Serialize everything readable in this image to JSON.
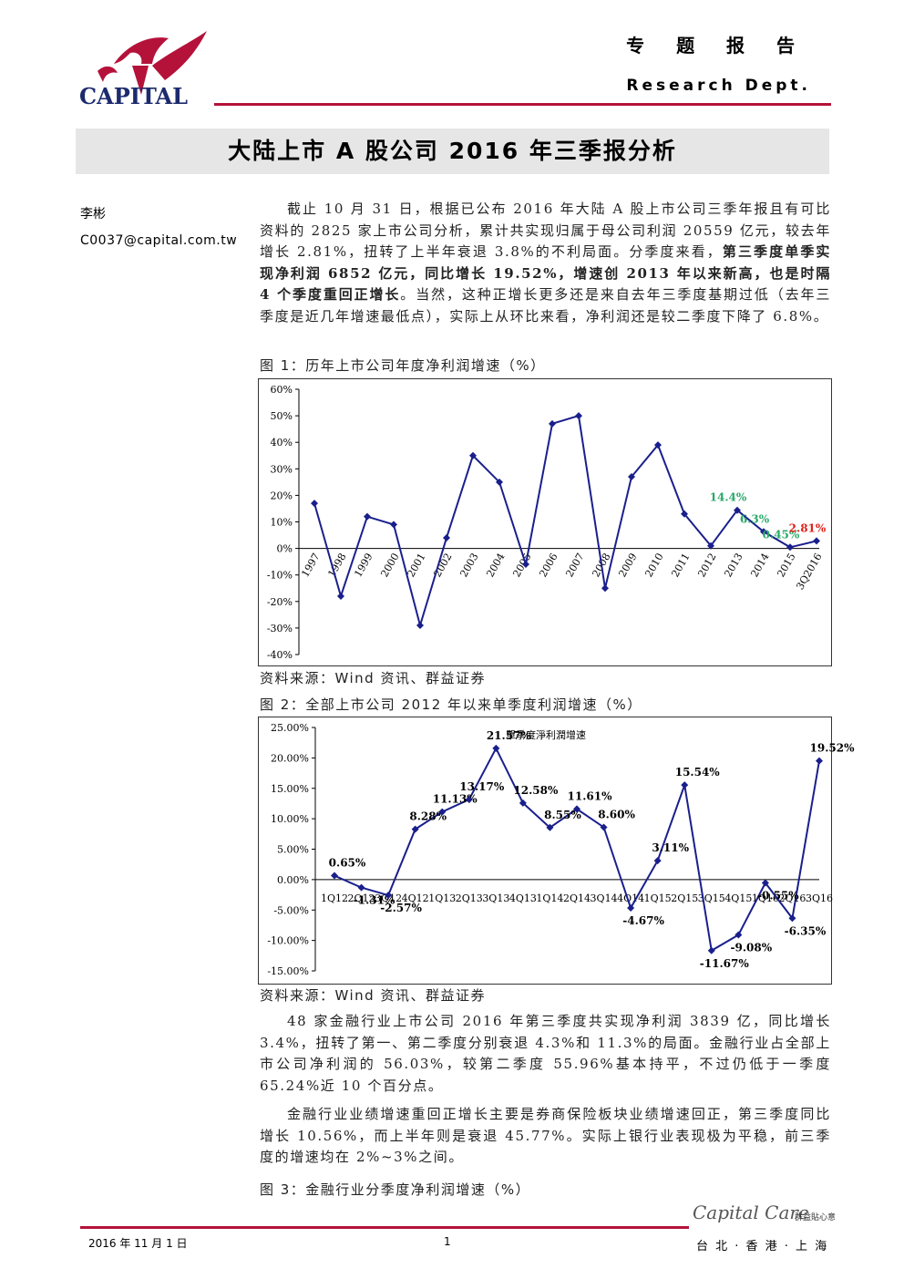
{
  "header": {
    "logo": "CAPITAL",
    "report_type": "专 题 报 告",
    "dept": "Research Dept."
  },
  "title": "大陆上市 A 股公司 2016 年三季报分析",
  "author": {
    "name": "李彬",
    "email": "C0037@capital.com.tw"
  },
  "paragraphs": [
    {
      "runs": [
        {
          "text": "截止 10 月 31 日，根据已公布 2016 年大陆 A 股上市公司三季年报且有可比资料的 2825 家上市公司分析，累计共实现归属于母公司利润 20559 亿元，较去年增长 2.81%，扭转了上半年衰退 3.8%的不利局面。分季度来看，",
          "bold": false
        },
        {
          "text": "第三季度单季实现净利润 6852 亿元，同比增长 19.52%，增速创 2013 年以来新高，也是时隔 4 个季度重回正增长",
          "bold": true
        },
        {
          "text": "。当然，这种正增长更多还是来自去年三季度基期过低（去年三季度是近几年增速最低点），实际上从环比来看，净利润还是较二季度下降了 6.8%。",
          "bold": false
        }
      ]
    },
    {
      "runs": [
        {
          "text": "48 家金融行业上市公司 2016 年第三季度共实现净利润 3839 亿，同比增长 3.4%，扭转了第一、第二季度分别衰退 4.3%和 11.3%的局面。金融行业占全部上市公司净利润的 56.03%，较第二季度 55.96%基本持平，不过仍低于一季度 65.24%近 10 个百分点。",
          "bold": false
        }
      ]
    },
    {
      "runs": [
        {
          "text": "金融行业业绩增速重回正增长主要是券商保险板块业绩增速回正，第三季度同比增长 10.56%，而上半年则是衰退 45.77%。实际上银行业表现极为平稳，前三季度的增速均在 2%~3%之间。",
          "bold": false
        }
      ]
    }
  ],
  "figures": [
    {
      "caption": "图 1：历年上市公司年度净利润增速（%）",
      "source": "资料来源：Wind 资讯、群益证券",
      "chart": {
        "type": "line",
        "categories": [
          "1997",
          "1998",
          "1999",
          "2000",
          "2001",
          "2002",
          "2003",
          "2004",
          "2005",
          "2006",
          "2007",
          "2008",
          "2009",
          "2010",
          "2011",
          "2012",
          "2013",
          "2014",
          "2015",
          "3Q2016"
        ],
        "series": [
          {
            "color": "#1a1f8c",
            "values": [
              17,
              -18,
              12,
              9,
              -29,
              4,
              35,
              25,
              -6,
              47,
              50,
              -15,
              27,
              39,
              13,
              1,
              14.4,
              6.3,
              0.45,
              2.81
            ],
            "value_labels": [
              null,
              null,
              null,
              null,
              null,
              null,
              null,
              null,
              null,
              null,
              null,
              null,
              null,
              null,
              null,
              null,
              "14.4%",
              "6.3%",
              "0.45%",
              "2.81%"
            ],
            "label_colors": [
              null,
              null,
              null,
              null,
              null,
              null,
              null,
              null,
              null,
              null,
              null,
              null,
              null,
              null,
              null,
              null,
              "#2aa86a",
              "#2aa86a",
              "#2aa86a",
              "#e0201b"
            ]
          }
        ],
        "ylim": [
          -40,
          60
        ],
        "yticks": [
          {
            "value": -40,
            "label": "-40%"
          },
          {
            "value": -30,
            "label": "-30%"
          },
          {
            "value": -20,
            "label": "-20%"
          },
          {
            "value": -10,
            "label": "-10%"
          },
          {
            "value": 0,
            "label": "0%"
          },
          {
            "value": 10,
            "label": "10%"
          },
          {
            "value": 20,
            "label": "20%"
          },
          {
            "value": 30,
            "label": "30%"
          },
          {
            "value": 40,
            "label": "40%"
          },
          {
            "value": 50,
            "label": "50%"
          },
          {
            "value": 60,
            "label": "60%"
          }
        ],
        "grid": false
      }
    },
    {
      "caption": "图 2：全部上市公司 2012 年以来单季度利润增速（%）",
      "source": "资料来源：Wind 资讯、群益证券",
      "chart": {
        "type": "line",
        "categories": [
          "1Q12",
          "2Q12",
          "3Q12",
          "4Q12",
          "1Q13",
          "2Q13",
          "3Q13",
          "4Q13",
          "1Q14",
          "2Q14",
          "3Q14",
          "4Q14",
          "1Q15",
          "2Q15",
          "3Q15",
          "4Q15",
          "1Q16",
          "2Q16",
          "3Q16"
        ],
        "series": [
          {
            "name": "單季度淨利潤增速",
            "color": "#1a1f8c",
            "values": [
              0.65,
              -1.31,
              -2.57,
              8.28,
              11.13,
              13.17,
              21.57,
              12.58,
              8.55,
              11.61,
              8.6,
              -4.67,
              3.11,
              15.54,
              -11.67,
              -9.08,
              -0.55,
              -6.35,
              19.52
            ],
            "value_labels": [
              "0.65%",
              "-1.31%",
              "-2.57%",
              "8.28%",
              "11.13%",
              "13.17%",
              "21.57%",
              "12.58%",
              "8.55%",
              "11.61%",
              "8.60%",
              "-4.67%",
              "3.11%",
              "15.54%",
              "-11.67%",
              "-9.08%",
              "-0.55%",
              "-6.35%",
              "19.52%"
            ]
          }
        ],
        "ylim": [
          -15,
          25
        ],
        "yticks": [
          {
            "value": -15,
            "label": "-15.00%"
          },
          {
            "value": -10,
            "label": "-10.00%"
          },
          {
            "value": -5,
            "label": "-5.00%"
          },
          {
            "value": 0,
            "label": "0.00%"
          },
          {
            "value": 5,
            "label": "5.00%"
          },
          {
            "value": 10,
            "label": "10.00%"
          },
          {
            "value": 15,
            "label": "15.00%"
          },
          {
            "value": 20,
            "label": "20.00%"
          },
          {
            "value": 25,
            "label": "25.00%"
          }
        ],
        "grid": false
      }
    },
    {
      "caption": "图 3：金融行业分季度净利润增速（%）"
    }
  ],
  "footer": {
    "date": "2016 年 11 月 1 日",
    "page": "1",
    "brand": "Capital Care",
    "brand_cn": "群益貼心意",
    "offices": "台 北 · 香 港 · 上 海"
  }
}
